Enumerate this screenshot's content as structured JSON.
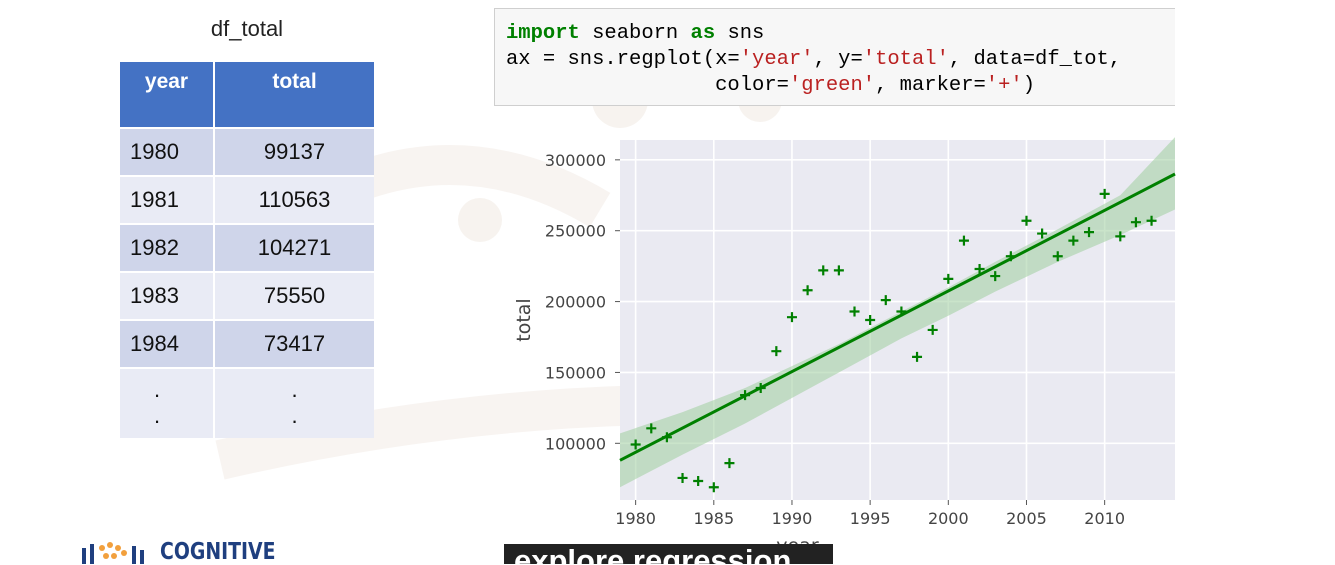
{
  "table": {
    "title": "df_total",
    "headers": [
      "year",
      "total"
    ],
    "rows": [
      [
        "1980",
        "99137"
      ],
      [
        "1981",
        "110563"
      ],
      [
        "1982",
        "104271"
      ],
      [
        "1983",
        "75550"
      ],
      [
        "1984",
        "73417"
      ]
    ],
    "ellipsis": ".\n."
  },
  "code": {
    "lines": [
      [
        {
          "t": "import",
          "c": "kw"
        },
        {
          "t": " seaborn "
        },
        {
          "t": "as",
          "c": "kw"
        },
        {
          "t": " sns"
        }
      ],
      [
        {
          "t": "ax = sns.regplot(x="
        },
        {
          "t": "'year'",
          "c": "str"
        },
        {
          "t": ", y="
        },
        {
          "t": "'total'",
          "c": "str"
        },
        {
          "t": ", data=df_tot,"
        }
      ],
      [
        {
          "t": "                 color="
        },
        {
          "t": "'green'",
          "c": "str"
        },
        {
          "t": ", marker="
        },
        {
          "t": "'+'",
          "c": "str"
        },
        {
          "t": ")"
        }
      ]
    ]
  },
  "chart_data": {
    "type": "scatter",
    "xlabel": "year",
    "ylabel": "total",
    "xlim": [
      1979,
      2014.5
    ],
    "ylim": [
      60000,
      314000
    ],
    "xticks": [
      1980,
      1985,
      1990,
      1995,
      2000,
      2005,
      2010
    ],
    "yticks": [
      100000,
      150000,
      200000,
      250000,
      300000
    ],
    "grid": true,
    "marker": "+",
    "color": "#008000",
    "band_color": "#9fce9f",
    "background": "#eaeaf2",
    "x": [
      1980,
      1981,
      1982,
      1983,
      1984,
      1985,
      1986,
      1987,
      1988,
      1989,
      1990,
      1991,
      1992,
      1993,
      1994,
      1995,
      1996,
      1997,
      1998,
      1999,
      2000,
      2001,
      2002,
      2003,
      2004,
      2005,
      2006,
      2007,
      2008,
      2009,
      2010,
      2011,
      2012,
      2013
    ],
    "y": [
      99137,
      110563,
      104271,
      75550,
      73417,
      69000,
      86000,
      134000,
      139000,
      165000,
      189000,
      208000,
      222000,
      222000,
      193000,
      187000,
      201000,
      193000,
      161000,
      180000,
      216000,
      243000,
      223000,
      218000,
      232000,
      257000,
      248000,
      232000,
      243000,
      249000,
      276000,
      246000,
      256000,
      257000
    ],
    "regression": {
      "x": [
        1979,
        2014.5
      ],
      "y": [
        88000,
        290000
      ]
    },
    "ci_band": {
      "x": [
        1979,
        1983,
        1987,
        1993,
        1997,
        2000,
        2003,
        2007,
        2011,
        2014.5
      ],
      "lower": [
        69000,
        92000,
        114000,
        150000,
        174000,
        190000,
        207000,
        228000,
        247000,
        265000
      ],
      "upper": [
        107000,
        122000,
        139000,
        170000,
        193000,
        210000,
        228000,
        251000,
        275000,
        316000
      ]
    }
  },
  "branding": {
    "logo_text": "COGNITIVE"
  },
  "caption": {
    "text": "explore regression"
  }
}
